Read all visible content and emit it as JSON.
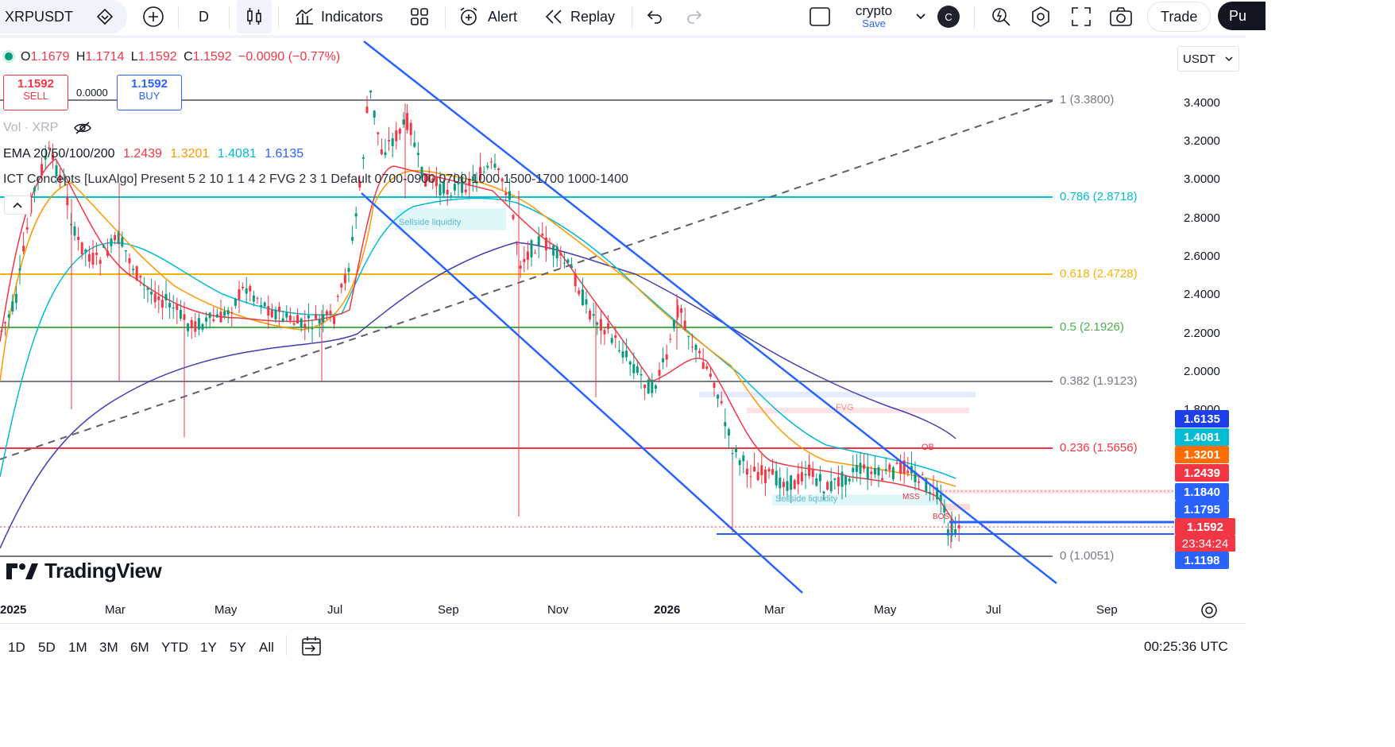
{
  "toolbar": {
    "symbol": "XRPUSDT",
    "interval": "D",
    "indicators": "Indicators",
    "alert": "Alert",
    "replay": "Replay",
    "layout_name": "crypto",
    "layout_save": "Save",
    "avatar_letter": "C",
    "trade": "Trade",
    "publish": "Pu"
  },
  "legend": {
    "open_label": "O",
    "open": "1.1679",
    "high_label": "H",
    "high": "1.1714",
    "low_label": "L",
    "low": "1.1592",
    "close_label": "C",
    "close": "1.1592",
    "change": "−0.0090 (−0.77%)",
    "sell_price": "1.1592",
    "sell_label": "SELL",
    "spread": "0.0000",
    "buy_price": "1.1592",
    "buy_label": "BUY",
    "vol": "Vol · XRP",
    "ema_label": "EMA 20/50/100/200",
    "ema20": "1.2439",
    "ema50": "1.3201",
    "ema100": "1.4081",
    "ema200": "1.6135",
    "ict": "ICT Concepts [LuxAlgo] Present 5 2 10 1 1 4 2 FVG 2 3 1 Default 0700-0900 0700-1000 1500-1700 1000-1400"
  },
  "currency": "USDT",
  "y_axis": [
    "3.4000",
    "3.2000",
    "3.0000",
    "2.8000",
    "2.6000",
    "2.4000",
    "2.2000",
    "2.0000",
    "1.8000"
  ],
  "x_axis": [
    "2025",
    "Mar",
    "May",
    "Jul",
    "Sep",
    "Nov",
    "2026",
    "Mar",
    "May",
    "Jul",
    "Sep"
  ],
  "fib_levels": [
    {
      "label": "1 (3.3800)",
      "color": "#787b86"
    },
    {
      "label": "0.786 (2.8718)",
      "color": "#00bcd4"
    },
    {
      "label": "0.618 (2.4728)",
      "color": "#f5b40a"
    },
    {
      "label": "0.5 (2.1926)",
      "color": "#4caf50"
    },
    {
      "label": "0.382 (1.9123)",
      "color": "#787b86"
    },
    {
      "label": "0.236 (1.5656)",
      "color": "#f23645"
    },
    {
      "label": "0 (1.0051)",
      "color": "#787b86"
    }
  ],
  "price_labels": [
    {
      "value": "1.6135",
      "color": "#1e3ee8"
    },
    {
      "value": "1.4081",
      "color": "#00bcd4"
    },
    {
      "value": "1.3201",
      "color": "#ff6d00"
    },
    {
      "value": "1.2439",
      "color": "#f23645"
    },
    {
      "value": "1.1840",
      "color": "#2962ff"
    },
    {
      "value": "1.1795",
      "color": "#2962ff"
    },
    {
      "value": "1.1592",
      "color": "#f23645"
    },
    {
      "value": "1.1198",
      "color": "#2962ff"
    }
  ],
  "countdown": "23:34:24",
  "annotations": {
    "sellside1": "Sellside liquidity",
    "sellside2": "Sellside liquidity",
    "fvg": "FVG",
    "ob": "OB",
    "mss": "MSS",
    "bos": "BOS"
  },
  "watermark": "TradingView",
  "ranges": [
    "1D",
    "5D",
    "1M",
    "3M",
    "6M",
    "YTD",
    "1Y",
    "5Y",
    "All"
  ],
  "clock": "00:25:36 UTC"
}
